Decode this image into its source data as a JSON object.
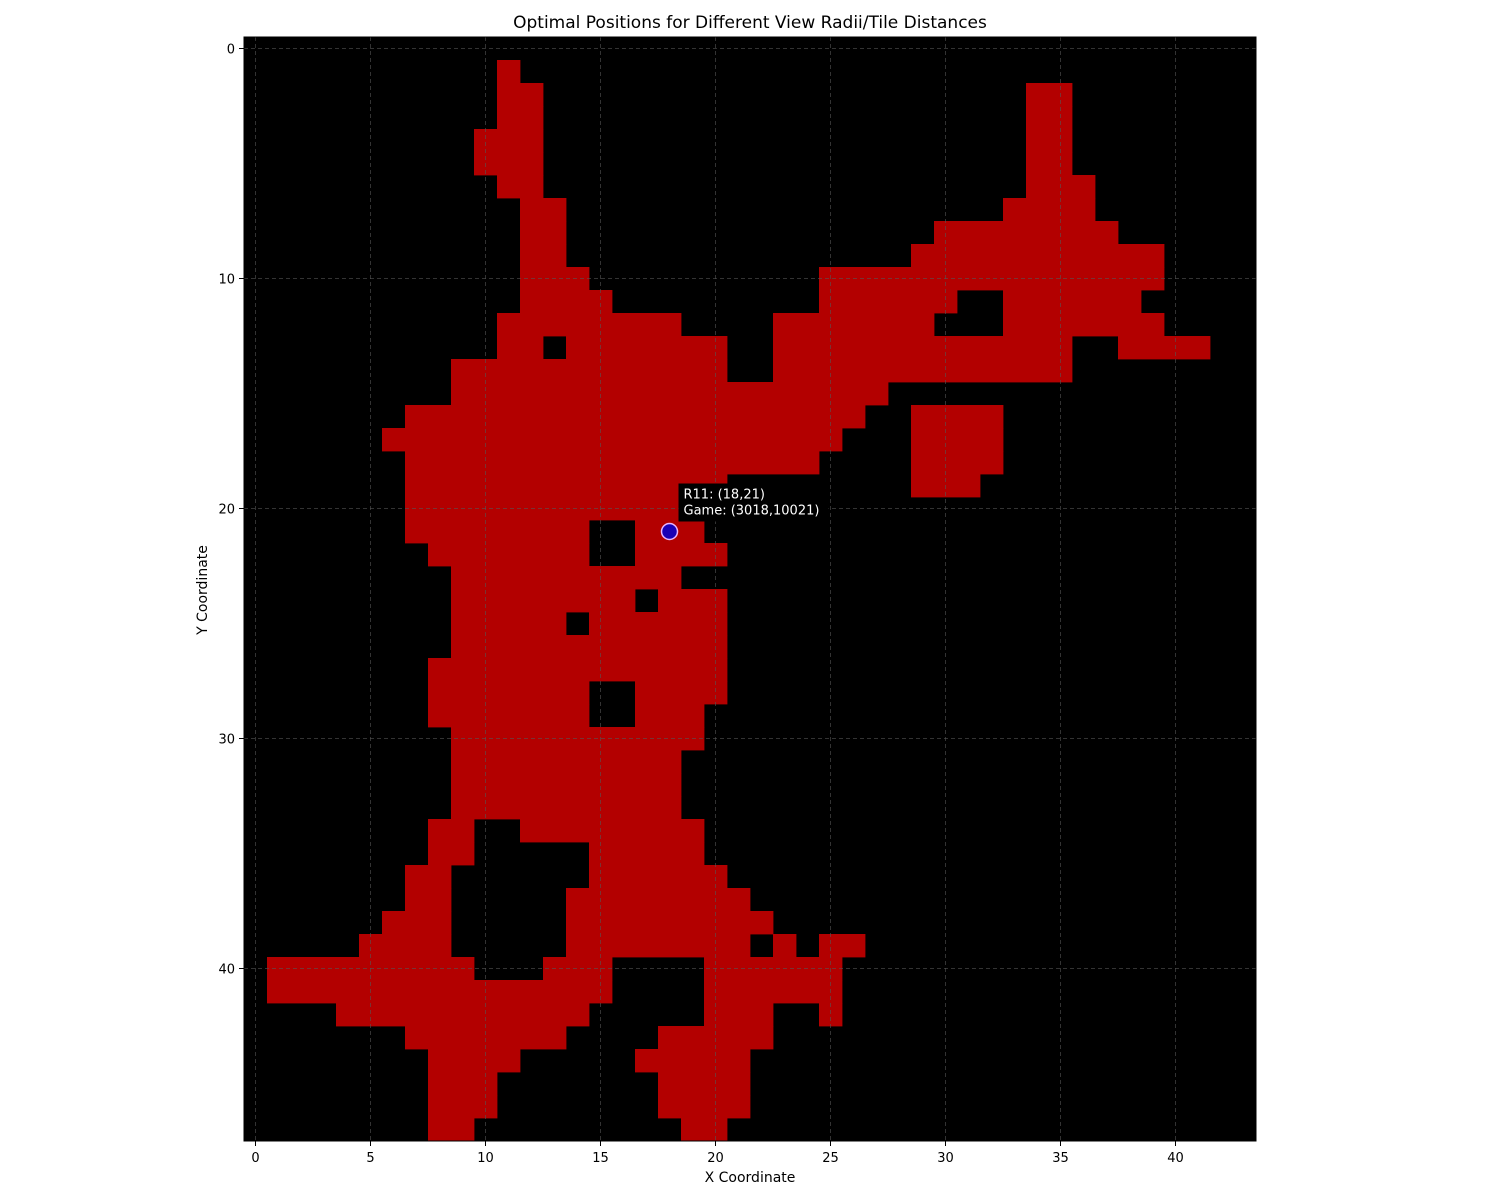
{
  "chart_data": {
    "type": "heatmap",
    "title": "Optimal Positions for Different View Radii/Tile Distances",
    "xlabel": "X Coordinate",
    "ylabel": "Y Coordinate",
    "xlim": [
      -0.5,
      43.5
    ],
    "ylim": [
      47.5,
      -0.5
    ],
    "y_axis_inverted": true,
    "grid": true,
    "xticks": [
      0,
      5,
      10,
      15,
      20,
      25,
      30,
      35,
      40
    ],
    "yticks": [
      0,
      10,
      20,
      30,
      40
    ],
    "colors": {
      "background": "#000000",
      "walkable": "#b30000",
      "marker_fill": "#1a00b4",
      "marker_edge": "#e8b4ff",
      "grid": "#555555"
    },
    "walkable_runs": {
      "1": [
        [
          11,
          11
        ]
      ],
      "2": [
        [
          11,
          12
        ],
        [
          34,
          35
        ]
      ],
      "3": [
        [
          11,
          12
        ],
        [
          34,
          35
        ]
      ],
      "4": [
        [
          10,
          12
        ],
        [
          34,
          35
        ]
      ],
      "5": [
        [
          10,
          12
        ],
        [
          34,
          35
        ]
      ],
      "6": [
        [
          11,
          12
        ],
        [
          34,
          36
        ]
      ],
      "7": [
        [
          12,
          13
        ],
        [
          33,
          36
        ]
      ],
      "8": [
        [
          12,
          13
        ],
        [
          30,
          37
        ]
      ],
      "9": [
        [
          12,
          13
        ],
        [
          29,
          39
        ]
      ],
      "10": [
        [
          12,
          14
        ],
        [
          25,
          39
        ]
      ],
      "11": [
        [
          12,
          15
        ],
        [
          25,
          30
        ],
        [
          33,
          38
        ]
      ],
      "12": [
        [
          11,
          18
        ],
        [
          23,
          29
        ],
        [
          33,
          37
        ],
        [
          38,
          39
        ]
      ],
      "13": [
        [
          11,
          12
        ],
        [
          14,
          20
        ],
        [
          23,
          35
        ],
        [
          38,
          41
        ]
      ],
      "14": [
        [
          9,
          20
        ],
        [
          23,
          35
        ]
      ],
      "15": [
        [
          9,
          27
        ]
      ],
      "16": [
        [
          7,
          26
        ],
        [
          29,
          32
        ]
      ],
      "17": [
        [
          6,
          25
        ],
        [
          29,
          32
        ]
      ],
      "18": [
        [
          7,
          24
        ],
        [
          29,
          32
        ]
      ],
      "19": [
        [
          7,
          20
        ],
        [
          29,
          31
        ]
      ],
      "20": [
        [
          7,
          19
        ]
      ],
      "21": [
        [
          7,
          14
        ],
        [
          17,
          19
        ]
      ],
      "22": [
        [
          8,
          14
        ],
        [
          17,
          20
        ]
      ],
      "23": [
        [
          9,
          18
        ]
      ],
      "24": [
        [
          9,
          16
        ],
        [
          18,
          20
        ]
      ],
      "25": [
        [
          9,
          13
        ],
        [
          15,
          20
        ]
      ],
      "26": [
        [
          9,
          20
        ]
      ],
      "27": [
        [
          8,
          20
        ]
      ],
      "28": [
        [
          8,
          14
        ],
        [
          17,
          20
        ]
      ],
      "29": [
        [
          8,
          14
        ],
        [
          17,
          19
        ]
      ],
      "30": [
        [
          9,
          19
        ]
      ],
      "31": [
        [
          9,
          18
        ]
      ],
      "32": [
        [
          9,
          18
        ]
      ],
      "33": [
        [
          9,
          18
        ]
      ],
      "34": [
        [
          8,
          9
        ],
        [
          12,
          19
        ]
      ],
      "35": [
        [
          8,
          9
        ],
        [
          15,
          19
        ]
      ],
      "36": [
        [
          7,
          8
        ],
        [
          15,
          20
        ]
      ],
      "37": [
        [
          7,
          8
        ],
        [
          14,
          21
        ]
      ],
      "38": [
        [
          6,
          8
        ],
        [
          14,
          22
        ]
      ],
      "39": [
        [
          5,
          8
        ],
        [
          14,
          21
        ],
        [
          23,
          23
        ],
        [
          25,
          26
        ]
      ],
      "40": [
        [
          1,
          9
        ],
        [
          13,
          15
        ],
        [
          20,
          25
        ]
      ],
      "41": [
        [
          1,
          15
        ],
        [
          20,
          25
        ]
      ],
      "42": [
        [
          4,
          14
        ],
        [
          20,
          22
        ],
        [
          25,
          25
        ]
      ],
      "43": [
        [
          7,
          13
        ],
        [
          18,
          22
        ]
      ],
      "44": [
        [
          8,
          11
        ],
        [
          17,
          21
        ]
      ],
      "45": [
        [
          8,
          10
        ],
        [
          18,
          21
        ]
      ],
      "46": [
        [
          8,
          10
        ],
        [
          18,
          21
        ]
      ],
      "47": [
        [
          8,
          9
        ],
        [
          19,
          20
        ]
      ]
    },
    "markers": [
      {
        "x": 18,
        "y": 21,
        "label_line1": "R11: (18,21)",
        "label_line2": "Game: (3018,10021)"
      }
    ]
  }
}
